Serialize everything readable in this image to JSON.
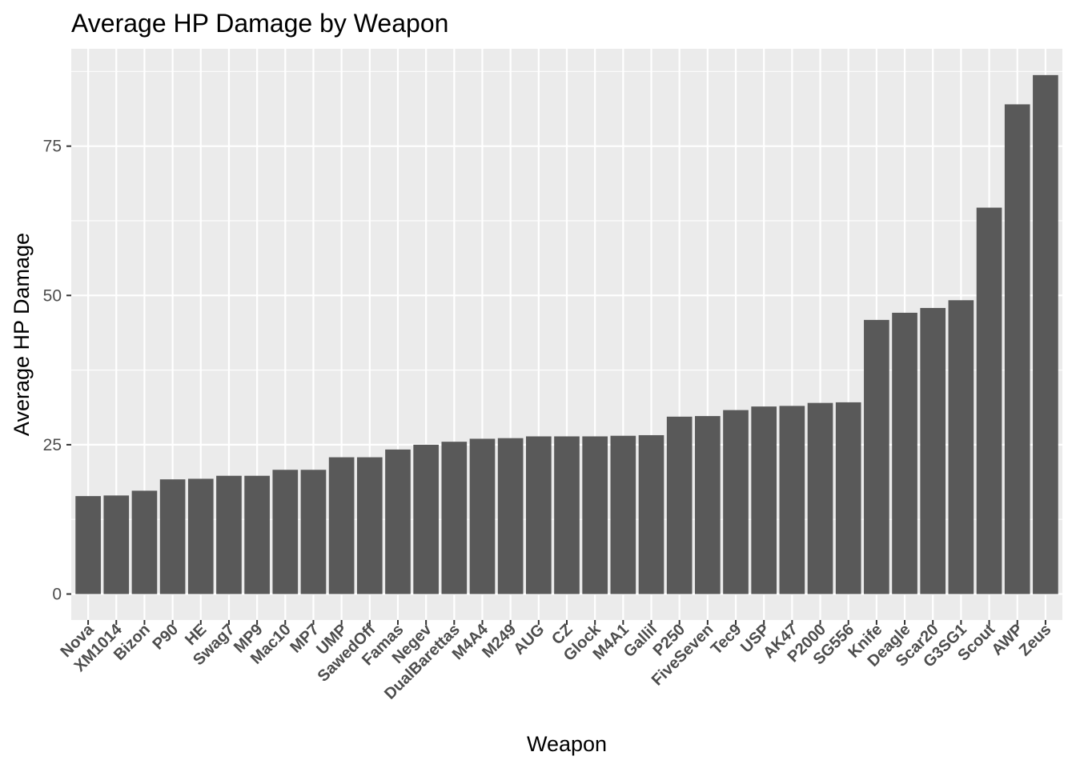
{
  "chart_data": {
    "type": "bar",
    "title": "Average HP Damage by Weapon",
    "xlabel": "Weapon",
    "ylabel": "Average HP Damage",
    "categories": [
      "Nova",
      "XM1014",
      "Bizon",
      "P90",
      "HE",
      "Swag7",
      "MP9",
      "Mac10",
      "MP7",
      "UMP",
      "SawedOff",
      "Famas",
      "Negev",
      "DualBarettas",
      "M4A4",
      "M249",
      "AUG",
      "CZ",
      "Glock",
      "M4A1",
      "Gallil",
      "P250",
      "FiveSeven",
      "Tec9",
      "USP",
      "AK47",
      "P2000",
      "SG556",
      "Knife",
      "Deagle",
      "Scar20",
      "G3SG1",
      "Scout",
      "AWP",
      "Zeus"
    ],
    "values": [
      16.4,
      16.5,
      17.3,
      19.2,
      19.3,
      19.8,
      19.8,
      20.8,
      20.8,
      22.9,
      22.9,
      24.2,
      25.0,
      25.5,
      26.0,
      26.1,
      26.4,
      26.4,
      26.4,
      26.5,
      26.6,
      29.7,
      29.8,
      30.8,
      31.4,
      31.5,
      32.0,
      32.1,
      45.9,
      47.1,
      47.9,
      49.2,
      64.7,
      82.0,
      86.9
    ],
    "yticks": [
      0,
      25,
      50,
      75
    ],
    "ylim": [
      -4.35,
      91.3
    ],
    "grid": true,
    "bar_color": "#595959",
    "panel_color": "#ebebeb",
    "grid_color": "#ffffff"
  }
}
